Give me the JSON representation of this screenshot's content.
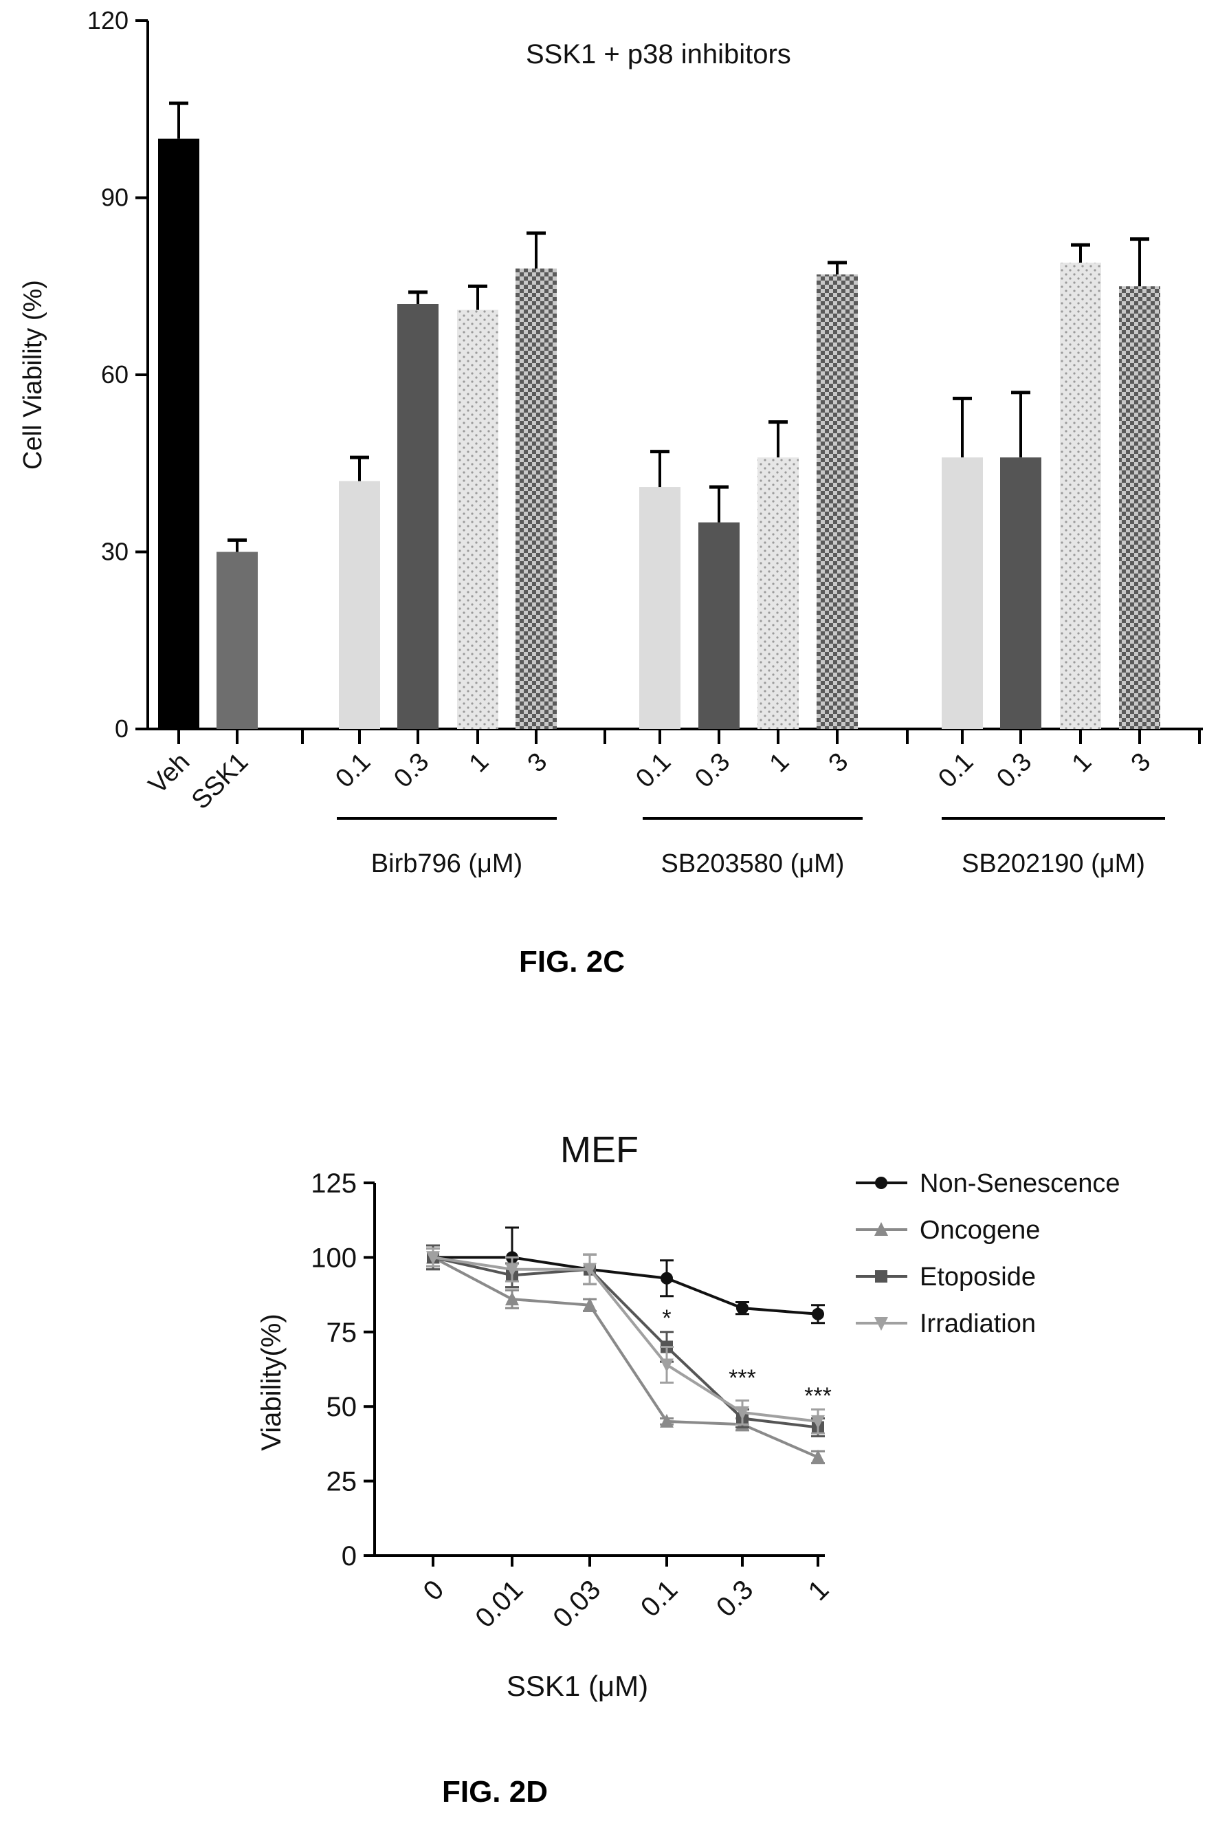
{
  "figure_c": {
    "caption": "FIG. 2C",
    "chart_data": {
      "type": "bar",
      "title": "SSK1 + p38 inhibitors",
      "xlabel": "",
      "ylabel": "Cell Viability (%)",
      "ylim": [
        0,
        120
      ],
      "yticks": [
        "0",
        "30",
        "60",
        "90",
        "120"
      ],
      "legend": "none",
      "grid": false,
      "categories": [
        "Veh",
        "SSK1",
        "0.1",
        "0.3",
        "1",
        "3",
        "0.1",
        "0.3",
        "1",
        "3",
        "0.1",
        "0.3",
        "1",
        "3"
      ],
      "values": [
        100,
        30,
        42,
        72,
        71,
        78,
        41,
        35,
        46,
        77,
        46,
        46,
        79,
        75
      ],
      "errors": [
        6,
        2,
        4,
        2,
        4,
        6,
        6,
        6,
        6,
        2,
        10,
        11,
        3,
        8
      ],
      "groups": [
        {
          "label": "Birb796 (μM)",
          "members": [
            "0.1",
            "0.3",
            "1",
            "3"
          ]
        },
        {
          "label": "SB203580 (μM)",
          "members": [
            "0.1",
            "0.3",
            "1",
            "3"
          ]
        },
        {
          "label": "SB202190 (μM)",
          "members": [
            "0.1",
            "0.3",
            "1",
            "3"
          ]
        }
      ],
      "colors": {
        "veh": "#000000",
        "ssk1": "#6e6e6e",
        "dose_0_1": "#dcdcdc",
        "dose_0_3": "#555555",
        "dose_1": "#d6d6d6",
        "dose_3": "#8a8a8a"
      }
    }
  },
  "figure_d": {
    "caption": "FIG. 2D",
    "chart_data": {
      "type": "line",
      "title": "MEF",
      "xlabel": "SSK1 (μM)",
      "ylabel": "Viability(%)",
      "ylim": [
        0,
        125
      ],
      "yticks": [
        "0",
        "25",
        "50",
        "75",
        "100",
        "125"
      ],
      "x": [
        "0",
        "0.01",
        "0.03",
        "0.1",
        "0.3",
        "1"
      ],
      "legend": "top-right",
      "grid": false,
      "series": [
        {
          "name": "Non-Senescence",
          "values": [
            100,
            100,
            96,
            93,
            83,
            81
          ],
          "errors": [
            3,
            10,
            5,
            6,
            2,
            3
          ],
          "color": "#111111",
          "marker": "circle"
        },
        {
          "name": "Oncogene",
          "values": [
            100,
            86,
            84,
            45,
            44,
            33
          ],
          "errors": [
            4,
            3,
            2,
            1,
            2,
            2
          ],
          "color": "#8a8a8a",
          "marker": "triangle"
        },
        {
          "name": "Etoposide",
          "values": [
            100,
            94,
            96,
            70,
            46,
            43
          ],
          "errors": [
            4,
            4,
            5,
            5,
            3,
            3
          ],
          "color": "#555555",
          "marker": "square"
        },
        {
          "name": "Irradiation",
          "values": [
            100,
            96,
            96,
            64,
            48,
            45
          ],
          "errors": [
            3,
            4,
            5,
            6,
            4,
            4
          ],
          "color": "#a0a0a0",
          "marker": "triangle-down"
        }
      ],
      "annotations": [
        {
          "x": "0.1",
          "y": 77,
          "text": "*"
        },
        {
          "x": "0.3",
          "y": 57,
          "text": "***"
        },
        {
          "x": "1",
          "y": 51,
          "text": "***"
        }
      ]
    }
  }
}
